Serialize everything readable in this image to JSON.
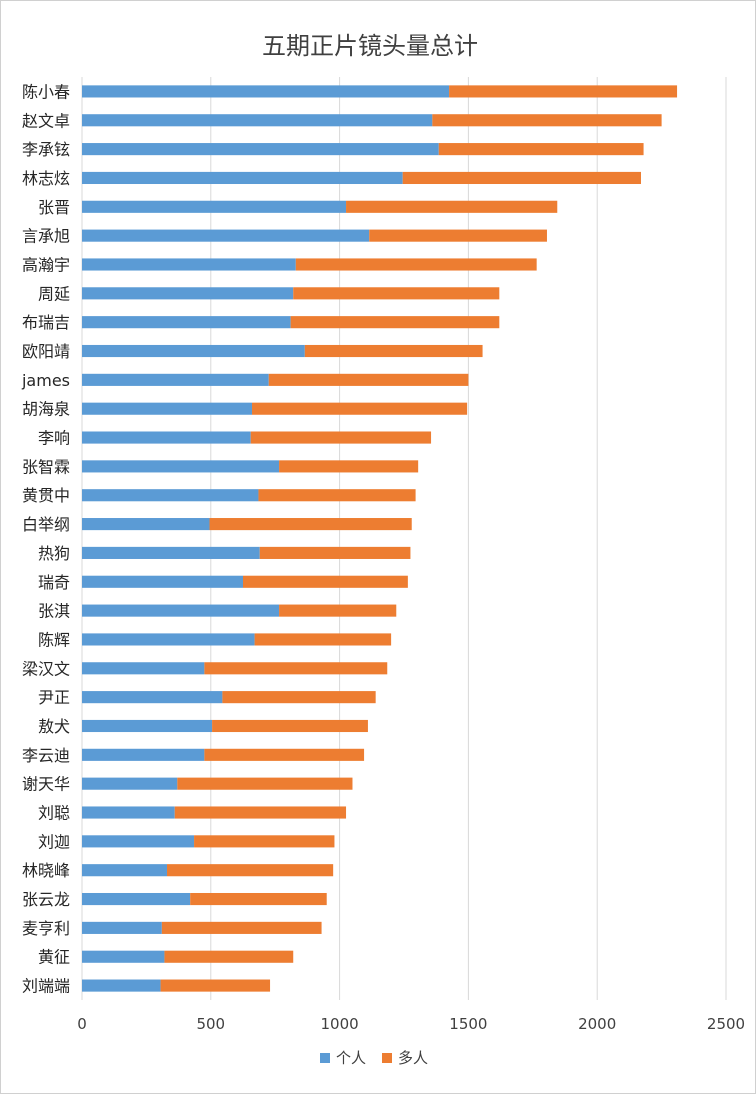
{
  "chart_data": {
    "type": "bar",
    "orientation": "horizontal",
    "stacked": true,
    "title": "五期正片镜头量总计",
    "xlabel": "",
    "ylabel": "",
    "xlim": [
      0,
      2500
    ],
    "xticks": [
      "0",
      "500",
      "1000",
      "1500",
      "2000",
      "2500"
    ],
    "grid": "vertical",
    "legend_position": "bottom",
    "categories": [
      "陈小春",
      "赵文卓",
      "李承铉",
      "林志炫",
      "张晋",
      "言承旭",
      "高瀚宇",
      "周延",
      "布瑞吉",
      "欧阳靖",
      "james",
      "胡海泉",
      "李响",
      "张智霖",
      "黄贯中",
      "白举纲",
      "热狗",
      "瑞奇",
      "张淇",
      "陈辉",
      "梁汉文",
      "尹正",
      "敖犬",
      "李云迪",
      "谢天华",
      "刘聪",
      "刘迦",
      "林晓峰",
      "张云龙",
      "麦亨利",
      "黄征",
      "刘端端"
    ],
    "series": [
      {
        "name": "个人",
        "color": "#5b9bd5",
        "values": [
          1425,
          1360,
          1385,
          1245,
          1025,
          1115,
          830,
          820,
          810,
          865,
          725,
          660,
          655,
          765,
          685,
          495,
          690,
          625,
          765,
          670,
          475,
          545,
          505,
          475,
          370,
          360,
          435,
          330,
          420,
          310,
          320,
          305
        ]
      },
      {
        "name": "多人",
        "color": "#ed7d31",
        "values": [
          885,
          890,
          795,
          925,
          820,
          690,
          935,
          800,
          810,
          690,
          775,
          835,
          700,
          540,
          610,
          785,
          585,
          640,
          455,
          530,
          710,
          595,
          605,
          620,
          680,
          665,
          545,
          645,
          530,
          620,
          500,
          425
        ]
      }
    ]
  }
}
